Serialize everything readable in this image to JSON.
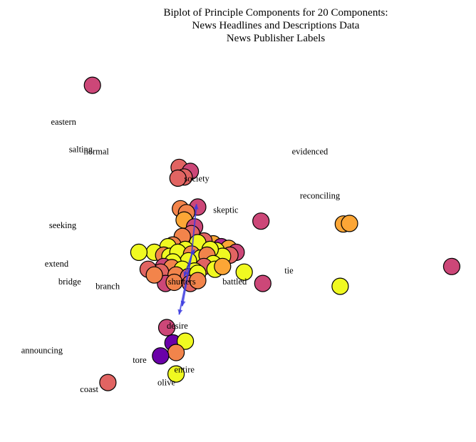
{
  "chart_data": {
    "type": "scatter",
    "title": [
      "Biplot of Principle Components for 20 Components:",
      "News Headlines and Descriptions Data",
      "News Publisher Labels"
    ],
    "xlim": [
      -3.0,
      4.5
    ],
    "ylim": [
      -3.2,
      3.6
    ],
    "palette": {
      "a": "#6a00a8",
      "b": "#b12a90",
      "c": "#cc4778",
      "d": "#e16462",
      "e": "#f2844b",
      "f": "#fca636",
      "g": "#f0f921"
    },
    "points": [
      {
        "x": -1.6,
        "y": 3.0,
        "c": "c"
      },
      {
        "x": -0.2,
        "y": 1.55,
        "c": "d"
      },
      {
        "x": -0.02,
        "y": 1.48,
        "c": "c"
      },
      {
        "x": -0.12,
        "y": 1.38,
        "c": "d"
      },
      {
        "x": -0.22,
        "y": 1.36,
        "c": "d"
      },
      {
        "x": 0.1,
        "y": 0.85,
        "c": "c"
      },
      {
        "x": -0.18,
        "y": 0.82,
        "c": "e"
      },
      {
        "x": -0.08,
        "y": 0.75,
        "c": "e"
      },
      {
        "x": -0.12,
        "y": 0.62,
        "c": "f"
      },
      {
        "x": 0.05,
        "y": 0.5,
        "c": "c"
      },
      {
        "x": 0.0,
        "y": 0.38,
        "c": "d"
      },
      {
        "x": -0.15,
        "y": 0.33,
        "c": "e"
      },
      {
        "x": 0.35,
        "y": 0.2,
        "c": "f"
      },
      {
        "x": 0.48,
        "y": 0.15,
        "c": "b"
      },
      {
        "x": 0.6,
        "y": 0.12,
        "c": "f"
      },
      {
        "x": -0.3,
        "y": 0.18,
        "c": "e"
      },
      {
        "x": -0.38,
        "y": 0.15,
        "c": "g"
      },
      {
        "x": 0.2,
        "y": 0.25,
        "c": "d"
      },
      {
        "x": 0.1,
        "y": 0.22,
        "c": "g"
      },
      {
        "x": -0.1,
        "y": 0.1,
        "c": "g"
      },
      {
        "x": 0.72,
        "y": 0.05,
        "c": "c"
      },
      {
        "x": 0.62,
        "y": 0.0,
        "c": "d"
      },
      {
        "x": 0.4,
        "y": 0.08,
        "c": "g"
      },
      {
        "x": 0.5,
        "y": -0.02,
        "c": "g"
      },
      {
        "x": 0.3,
        "y": 0.1,
        "c": "g"
      },
      {
        "x": -0.6,
        "y": 0.05,
        "c": "g"
      },
      {
        "x": -0.45,
        "y": 0.0,
        "c": "e"
      },
      {
        "x": -0.35,
        "y": -0.02,
        "c": "g"
      },
      {
        "x": -0.22,
        "y": 0.05,
        "c": "g"
      },
      {
        "x": 0.0,
        "y": 0.02,
        "c": "e"
      },
      {
        "x": 0.15,
        "y": -0.05,
        "c": "g"
      },
      {
        "x": 0.25,
        "y": 0.0,
        "c": "e"
      },
      {
        "x": -0.05,
        "y": -0.1,
        "c": "g"
      },
      {
        "x": -0.3,
        "y": -0.12,
        "c": "g"
      },
      {
        "x": 0.35,
        "y": -0.15,
        "c": "g"
      },
      {
        "x": 0.2,
        "y": -0.2,
        "c": "d"
      },
      {
        "x": -0.45,
        "y": -0.2,
        "c": "c"
      },
      {
        "x": -0.32,
        "y": -0.22,
        "c": "e"
      },
      {
        "x": -0.15,
        "y": -0.25,
        "c": "g"
      },
      {
        "x": 0.05,
        "y": -0.28,
        "c": "g"
      },
      {
        "x": 0.38,
        "y": -0.25,
        "c": "g"
      },
      {
        "x": 0.5,
        "y": -0.2,
        "c": "f"
      },
      {
        "x": -0.5,
        "y": -0.3,
        "c": "d"
      },
      {
        "x": -0.25,
        "y": -0.35,
        "c": "e"
      },
      {
        "x": -0.05,
        "y": -0.38,
        "c": "d"
      },
      {
        "x": 0.1,
        "y": -0.32,
        "c": "g"
      },
      {
        "x": -0.42,
        "y": -0.5,
        "c": "c"
      },
      {
        "x": -0.28,
        "y": -0.48,
        "c": "e"
      },
      {
        "x": -0.02,
        "y": -0.5,
        "c": "d"
      },
      {
        "x": 0.1,
        "y": -0.45,
        "c": "e"
      },
      {
        "x": -0.85,
        "y": 0.05,
        "c": "g"
      },
      {
        "x": -0.7,
        "y": -0.25,
        "c": "d"
      },
      {
        "x": -0.6,
        "y": -0.35,
        "c": "e"
      },
      {
        "x": 0.85,
        "y": -0.3,
        "c": "g"
      },
      {
        "x": 1.15,
        "y": -0.5,
        "c": "c"
      },
      {
        "x": 2.45,
        "y": 0.55,
        "c": "f"
      },
      {
        "x": 2.55,
        "y": 0.56,
        "c": "f"
      },
      {
        "x": 1.12,
        "y": 0.6,
        "c": "c"
      },
      {
        "x": 2.4,
        "y": -0.55,
        "c": "g"
      },
      {
        "x": 4.2,
        "y": -0.2,
        "c": "c"
      },
      {
        "x": -0.4,
        "y": -1.28,
        "c": "c"
      },
      {
        "x": -0.3,
        "y": -1.55,
        "c": "a"
      },
      {
        "x": -0.1,
        "y": -1.52,
        "c": "g"
      },
      {
        "x": -0.25,
        "y": -1.72,
        "c": "e"
      },
      {
        "x": -0.5,
        "y": -1.78,
        "c": "a"
      },
      {
        "x": -0.25,
        "y": -2.1,
        "c": "g"
      },
      {
        "x": -1.35,
        "y": -2.25,
        "c": "d"
      }
    ],
    "vectors": [
      {
        "x": 0.08,
        "y": 0.9
      },
      {
        "x": 0.05,
        "y": 0.1
      },
      {
        "x": -0.12,
        "y": -0.38
      },
      {
        "x": -0.15,
        "y": -0.9
      },
      {
        "x": -0.2,
        "y": -1.05
      }
    ],
    "labels": [
      {
        "text": "eastern",
        "x": -2.27,
        "y": 2.3
      },
      {
        "text": "salting",
        "x": -1.98,
        "y": 1.82
      },
      {
        "text": "normal",
        "x": -1.74,
        "y": 1.78
      },
      {
        "text": "evidenced",
        "x": 1.62,
        "y": 1.78
      },
      {
        "text": "society",
        "x": -0.12,
        "y": 1.3
      },
      {
        "text": "reconciling",
        "x": 1.75,
        "y": 1.0
      },
      {
        "text": "skeptic",
        "x": 0.35,
        "y": 0.75
      },
      {
        "text": "seeking",
        "x": -2.3,
        "y": 0.48
      },
      {
        "text": "extend",
        "x": -2.37,
        "y": -0.2
      },
      {
        "text": "tie",
        "x": 1.5,
        "y": -0.32
      },
      {
        "text": "bridge",
        "x": -2.15,
        "y": -0.52
      },
      {
        "text": "shutters",
        "x": -0.38,
        "y": -0.52
      },
      {
        "text": "battled",
        "x": 0.5,
        "y": -0.52
      },
      {
        "text": "branch",
        "x": -1.55,
        "y": -0.6
      },
      {
        "text": "desire",
        "x": -0.4,
        "y": -1.3
      },
      {
        "text": "announcing",
        "x": -2.75,
        "y": -1.73
      },
      {
        "text": "tore",
        "x": -0.95,
        "y": -1.9
      },
      {
        "text": "entire",
        "x": -0.28,
        "y": -2.07
      },
      {
        "text": "olive",
        "x": -0.55,
        "y": -2.3
      },
      {
        "text": "coast",
        "x": -1.8,
        "y": -2.42
      }
    ]
  }
}
